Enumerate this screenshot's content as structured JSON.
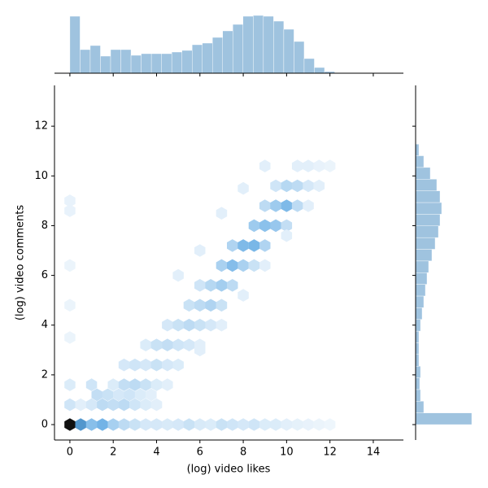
{
  "chart_data": [
    {
      "type": "hexbin",
      "x_label": "(log) video likes",
      "y_label": "(log) video comments",
      "xlim": [
        -0.71,
        15.39
      ],
      "ylim": [
        -0.62,
        13.64
      ],
      "xticks": [
        0,
        2,
        4,
        6,
        8,
        10,
        12,
        14
      ],
      "yticks": [
        0,
        2,
        4,
        6,
        8,
        10,
        12
      ],
      "colors": [
        "#f4f9fd",
        "#5aa6e2",
        "#111111"
      ],
      "hexes": {
        "x": [
          0,
          0.5,
          1,
          1.5,
          2,
          2.5,
          3,
          3.5,
          4,
          4.5,
          5,
          5.5,
          6,
          6.5,
          7,
          7.5,
          8,
          8.5,
          9,
          9.5,
          10,
          10.5,
          11,
          11.5,
          12,
          0,
          0.5,
          1,
          1.5,
          2,
          2.5,
          3,
          3.5,
          4,
          1.25,
          1.75,
          2.25,
          2.75,
          3.25,
          3.75,
          0,
          1,
          2,
          2.5,
          3,
          3.5,
          4,
          4.5,
          2.5,
          3,
          3.5,
          4,
          4.5,
          5,
          3.5,
          4,
          4.5,
          5,
          5.5,
          6,
          4.5,
          5,
          5.5,
          6,
          6.5,
          5.5,
          6,
          6.5,
          7,
          6,
          6.5,
          7,
          7.5,
          7,
          7.5,
          8,
          8.5,
          7.5,
          8,
          8.5,
          9,
          8.5,
          9,
          9.5,
          10,
          9,
          9.5,
          10,
          10.5,
          9.5,
          10,
          10.5,
          11,
          11.5,
          10.5,
          11,
          11.5,
          12,
          0,
          0,
          0,
          0,
          0,
          5,
          6,
          7,
          8,
          9,
          6,
          7,
          8,
          9,
          10,
          11
        ],
        "y": [
          0,
          0,
          0,
          0,
          0,
          0,
          0,
          0,
          0,
          0,
          0,
          0,
          0,
          0,
          0,
          0,
          0,
          0,
          0,
          0,
          0,
          0,
          0,
          0,
          0,
          0.8,
          0.8,
          0.8,
          0.8,
          0.8,
          0.8,
          0.8,
          0.8,
          0.8,
          1.2,
          1.2,
          1.2,
          1.2,
          1.2,
          1.2,
          1.6,
          1.6,
          1.6,
          1.6,
          1.6,
          1.6,
          1.6,
          1.6,
          2.4,
          2.4,
          2.4,
          2.4,
          2.4,
          2.4,
          3.2,
          3.2,
          3.2,
          3.2,
          3.2,
          3.2,
          4,
          4,
          4,
          4,
          4,
          4.8,
          4.8,
          4.8,
          4.8,
          5.6,
          5.6,
          5.6,
          5.6,
          6.4,
          6.4,
          6.4,
          6.4,
          7.2,
          7.2,
          7.2,
          7.2,
          8,
          8,
          8,
          8,
          8.8,
          8.8,
          8.8,
          8.8,
          9.6,
          9.6,
          9.6,
          9.6,
          9.6,
          10.4,
          10.4,
          10.4,
          10.4,
          9,
          8.6,
          6.4,
          3.5,
          4.8,
          6,
          7,
          8.5,
          9.5,
          10.4,
          3,
          4,
          5.2,
          6.4,
          7.6,
          8.8
        ],
        "counts": [
          100,
          55,
          35,
          42,
          25,
          18,
          14,
          10,
          10,
          9,
          10,
          14,
          9,
          8,
          14,
          12,
          10,
          12,
          8,
          8,
          6,
          5,
          4,
          3,
          2,
          12,
          6,
          10,
          18,
          16,
          18,
          12,
          8,
          6,
          16,
          14,
          10,
          12,
          8,
          6,
          8,
          12,
          8,
          16,
          18,
          14,
          8,
          6,
          10,
          12,
          10,
          14,
          10,
          8,
          8,
          14,
          16,
          12,
          10,
          6,
          10,
          14,
          18,
          14,
          10,
          14,
          18,
          22,
          14,
          12,
          20,
          26,
          18,
          24,
          36,
          24,
          14,
          22,
          38,
          40,
          22,
          28,
          34,
          30,
          16,
          18,
          28,
          38,
          18,
          12,
          20,
          18,
          10,
          6,
          6,
          6,
          4,
          3,
          4,
          4,
          3,
          3,
          3,
          6,
          6,
          6,
          6,
          6,
          6,
          6,
          6,
          6,
          6,
          6
        ]
      }
    },
    {
      "type": "histogram",
      "orientation": "vertical",
      "color": "#9fc3df",
      "xlim": [
        -0.71,
        15.39
      ],
      "ylim": [
        0,
        75
      ],
      "xticks": [
        0,
        2,
        4,
        6,
        8,
        10,
        12,
        14
      ],
      "bins": [
        0,
        0.47,
        0.94,
        1.41,
        1.88,
        2.35,
        2.82,
        3.29,
        3.76,
        4.23,
        4.7,
        5.17,
        5.64,
        6.11,
        6.58,
        7.05,
        7.52,
        7.99,
        8.46,
        8.93,
        9.4,
        9.87,
        10.34,
        10.81,
        11.28,
        11.75,
        12.22,
        12.69
      ],
      "values": [
        70,
        29,
        34,
        21,
        29,
        29,
        22,
        24,
        24,
        24,
        26,
        28,
        35,
        37,
        44,
        52,
        60,
        70,
        71,
        70,
        64,
        54,
        39,
        18,
        7,
        2,
        0.5
      ]
    },
    {
      "type": "histogram",
      "orientation": "horizontal",
      "color": "#9fc3df",
      "ylim": [
        -0.62,
        13.64
      ],
      "xlim": [
        0,
        80
      ],
      "yticks": [
        0,
        2,
        4,
        6,
        8,
        10,
        12
      ],
      "bins": [
        0,
        0.47,
        0.94,
        1.41,
        1.88,
        2.35,
        2.82,
        3.29,
        3.76,
        4.23,
        4.7,
        5.17,
        5.64,
        6.11,
        6.58,
        7.05,
        7.52,
        7.99,
        8.46,
        8.93,
        9.4,
        9.87,
        10.34,
        10.81,
        11.28
      ],
      "values": [
        69,
        10,
        6,
        5,
        6,
        4,
        4,
        4,
        6,
        8,
        10,
        12,
        14,
        16,
        20,
        24,
        28,
        30,
        32,
        30,
        26,
        18,
        10,
        4
      ]
    }
  ]
}
